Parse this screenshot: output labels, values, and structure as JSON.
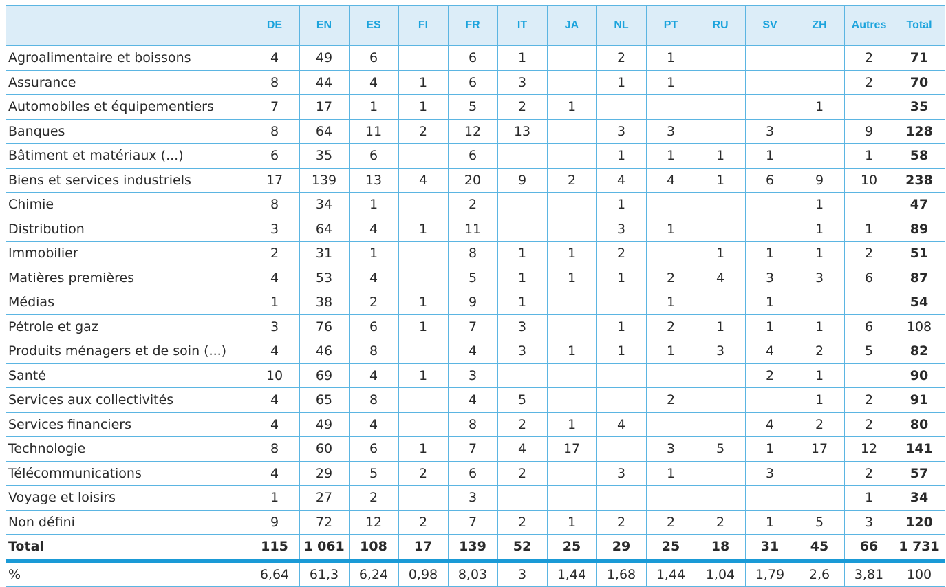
{
  "columns": [
    "DE",
    "EN",
    "ES",
    "FI",
    "FR",
    "IT",
    "JA",
    "NL",
    "PT",
    "RU",
    "SV",
    "ZH",
    "Autres",
    "Total"
  ],
  "rows": [
    {
      "label": "Agroalimentaire et boissons",
      "cells": [
        "4",
        "49",
        "6",
        "",
        "6",
        "1",
        "",
        "2",
        "1",
        "",
        "",
        "",
        "2",
        "71"
      ]
    },
    {
      "label": "Assurance",
      "cells": [
        "8",
        "44",
        "4",
        "1",
        "6",
        "3",
        "",
        "1",
        "1",
        "",
        "",
        "",
        "2",
        "70"
      ]
    },
    {
      "label": "Automobiles et équipementiers",
      "cells": [
        "7",
        "17",
        "1",
        "1",
        "5",
        "2",
        "1",
        "",
        "",
        "",
        "",
        "1",
        "",
        "35"
      ]
    },
    {
      "label": "Banques",
      "cells": [
        "8",
        "64",
        "11",
        "2",
        "12",
        "13",
        "",
        "3",
        "3",
        "",
        "3",
        "",
        "9",
        "128"
      ]
    },
    {
      "label": "Bâtiment et matériaux (...)",
      "cells": [
        "6",
        "35",
        "6",
        "",
        "6",
        "",
        "",
        "1",
        "1",
        "1",
        "1",
        "",
        "1",
        "58"
      ]
    },
    {
      "label": "Biens et services industriels",
      "cells": [
        "17",
        "139",
        "13",
        "4",
        "20",
        "9",
        "2",
        "4",
        "4",
        "1",
        "6",
        "9",
        "10",
        "238"
      ]
    },
    {
      "label": "Chimie",
      "cells": [
        "8",
        "34",
        "1",
        "",
        "2",
        "",
        "",
        "1",
        "",
        "",
        "",
        "1",
        "",
        "47"
      ]
    },
    {
      "label": "Distribution",
      "cells": [
        "3",
        "64",
        "4",
        "1",
        "11",
        "",
        "",
        "3",
        "1",
        "",
        "",
        "1",
        "1",
        "89"
      ]
    },
    {
      "label": "Immobilier",
      "cells": [
        "2",
        "31",
        "1",
        "",
        "8",
        "1",
        "1",
        "2",
        "",
        "1",
        "1",
        "1",
        "2",
        "51"
      ]
    },
    {
      "label": "Matières premières",
      "cells": [
        "4",
        "53",
        "4",
        "",
        "5",
        "1",
        "1",
        "1",
        "2",
        "4",
        "3",
        "3",
        "6",
        "87"
      ]
    },
    {
      "label": "Médias",
      "cells": [
        "1",
        "38",
        "2",
        "1",
        "9",
        "1",
        "",
        "",
        "1",
        "",
        "1",
        "",
        "",
        "54"
      ]
    },
    {
      "label": "Pétrole et gaz",
      "cells": [
        "3",
        "76",
        "6",
        "1",
        "7",
        "3",
        "",
        "1",
        "2",
        "1",
        "1",
        "1",
        "6",
        "108"
      ],
      "plain_total": true
    },
    {
      "label": "Produits ménagers et de soin (...)",
      "cells": [
        "4",
        "46",
        "8",
        "",
        "4",
        "3",
        "1",
        "1",
        "1",
        "3",
        "4",
        "2",
        "5",
        "82"
      ]
    },
    {
      "label": "Santé",
      "cells": [
        "10",
        "69",
        "4",
        "1",
        "3",
        "",
        "",
        "",
        "",
        "",
        "2",
        "1",
        "",
        "90"
      ]
    },
    {
      "label": "Services aux collectivités",
      "cells": [
        "4",
        "65",
        "8",
        "",
        "4",
        "5",
        "",
        "",
        "2",
        "",
        "",
        "1",
        "2",
        "91"
      ]
    },
    {
      "label": "Services financiers",
      "cells": [
        "4",
        "49",
        "4",
        "",
        "8",
        "2",
        "1",
        "4",
        "",
        "",
        "4",
        "2",
        "2",
        "80"
      ]
    },
    {
      "label": "Technologie",
      "cells": [
        "8",
        "60",
        "6",
        "1",
        "7",
        "4",
        "17",
        "",
        "3",
        "5",
        "1",
        "17",
        "12",
        "141"
      ]
    },
    {
      "label": "Télécommunications",
      "cells": [
        "4",
        "29",
        "5",
        "2",
        "6",
        "2",
        "",
        "3",
        "1",
        "",
        "3",
        "",
        "2",
        "57"
      ]
    },
    {
      "label": "Voyage et loisirs",
      "cells": [
        "1",
        "27",
        "2",
        "",
        "3",
        "",
        "",
        "",
        "",
        "",
        "",
        "",
        "1",
        "34"
      ]
    },
    {
      "label": "Non défini",
      "cells": [
        "9",
        "72",
        "12",
        "2",
        "7",
        "2",
        "1",
        "2",
        "2",
        "2",
        "1",
        "5",
        "3",
        "120"
      ]
    }
  ],
  "total": {
    "label": "Total",
    "cells": [
      "115",
      "1 061",
      "108",
      "17",
      "139",
      "52",
      "25",
      "29",
      "25",
      "18",
      "31",
      "45",
      "66",
      "1 731"
    ]
  },
  "percent": {
    "label": "%",
    "cells": [
      "6,64",
      "61,3",
      "6,24",
      "0,98",
      "8,03",
      "3",
      "1,44",
      "1,68",
      "1,44",
      "1,04",
      "1,79",
      "2,6",
      "3,81",
      "100"
    ]
  },
  "colors": {
    "header_bg": "#dcedf8",
    "header_text": "#1ba3dc",
    "grid": "#5bb5e2",
    "total_rule": "#1a9ad6"
  }
}
